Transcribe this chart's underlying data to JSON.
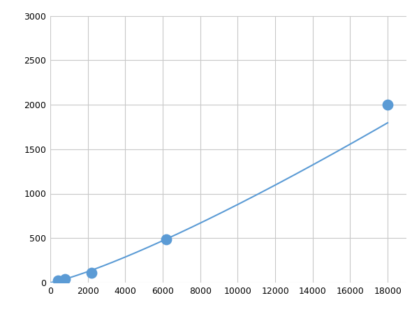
{
  "x_points": [
    400,
    800,
    2200,
    6200,
    18000
  ],
  "y_points": [
    20,
    40,
    110,
    490,
    2000
  ],
  "line_color": "#5b9bd5",
  "marker_color": "#5b9bd5",
  "marker_size": 6,
  "xlim": [
    0,
    19000
  ],
  "ylim": [
    0,
    3000
  ],
  "xticks": [
    0,
    2000,
    4000,
    6000,
    8000,
    10000,
    12000,
    14000,
    16000,
    18000
  ],
  "yticks": [
    0,
    500,
    1000,
    1500,
    2000,
    2500,
    3000
  ],
  "grid_color": "#c8c8c8",
  "background_color": "#ffffff",
  "line_width": 1.5,
  "figsize": [
    6.0,
    4.5
  ],
  "dpi": 100
}
